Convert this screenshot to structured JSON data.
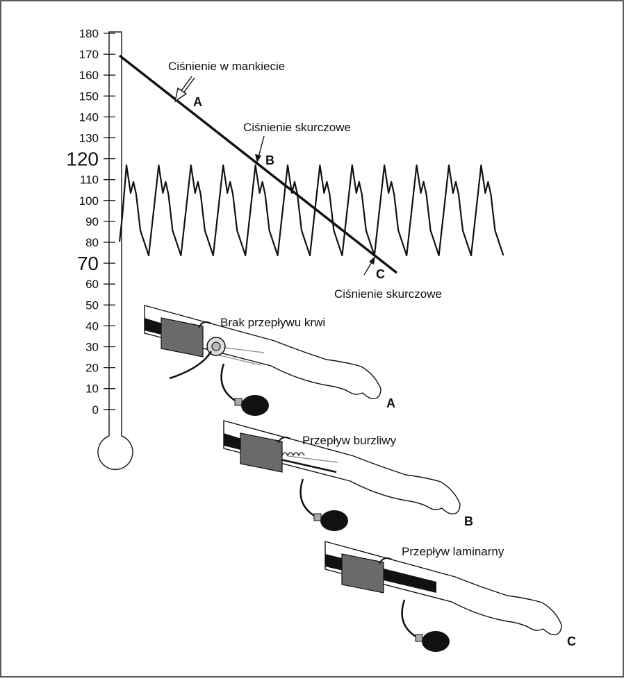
{
  "scale": {
    "ticks": [
      "180",
      "170",
      "160",
      "150",
      "140",
      "130",
      "120",
      "110",
      "100",
      "90",
      "80",
      "70",
      "60",
      "50",
      "40",
      "30",
      "20",
      "10",
      "0"
    ],
    "emphasized": [
      "120",
      "70"
    ]
  },
  "annotations": {
    "cuff_pressure": "Ciśnienie w mankiecie",
    "systolic_b": "Ciśnienie skurczowe",
    "systolic_c": "Ciśnienie skurczowe",
    "point_a": "A",
    "point_b": "B",
    "point_c": "C"
  },
  "arms": [
    {
      "label": "Brak przepływu krwi",
      "letter": "A"
    },
    {
      "label": "Przepływ burzliwy",
      "letter": "B"
    },
    {
      "label": "Przepływ laminarny",
      "letter": "C"
    }
  ]
}
